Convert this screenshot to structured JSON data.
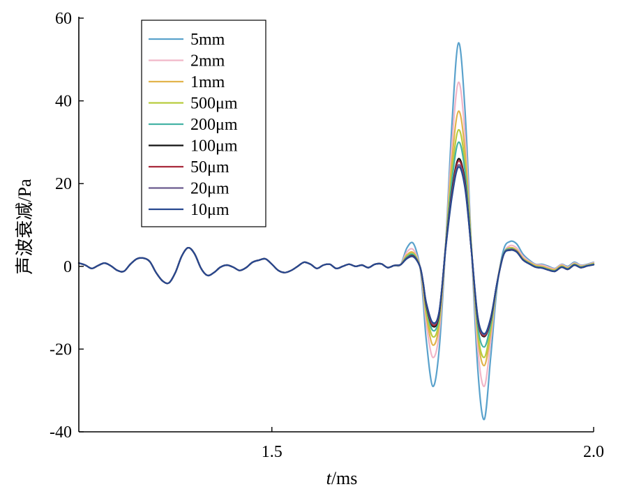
{
  "chart_data": {
    "type": "line",
    "title": "",
    "xlabel_italic": "t",
    "xlabel_unit": "/ms",
    "ylabel": "声波衰减/Pa",
    "xlim": [
      1.2,
      2.0
    ],
    "ylim": [
      -40,
      60
    ],
    "x_ticks": [
      {
        "value": 1.5,
        "label": "1.5"
      },
      {
        "value": 2.0,
        "label": "2.0"
      }
    ],
    "y_ticks": [
      {
        "value": 60,
        "label": "60"
      },
      {
        "value": 40,
        "label": "40"
      },
      {
        "value": 20,
        "label": "20"
      },
      {
        "value": 0,
        "label": "0"
      },
      {
        "value": -20,
        "label": "-20"
      },
      {
        "value": -40,
        "label": "-40"
      }
    ],
    "grid": false,
    "legend_position": "top-left",
    "prefix_x": [
      1.2,
      1.21,
      1.22,
      1.23,
      1.24,
      1.25,
      1.26,
      1.27,
      1.28,
      1.29,
      1.3,
      1.31,
      1.32,
      1.33,
      1.34,
      1.35,
      1.36,
      1.37,
      1.38,
      1.39,
      1.4,
      1.41,
      1.42,
      1.43,
      1.44,
      1.45,
      1.46,
      1.47,
      1.48,
      1.49,
      1.5,
      1.51,
      1.52,
      1.53,
      1.54,
      1.55,
      1.56,
      1.57,
      1.58,
      1.59,
      1.6,
      1.61,
      1.62,
      1.63,
      1.64,
      1.65,
      1.66,
      1.67,
      1.68,
      1.69,
      1.7
    ],
    "prefix_y": [
      0.8,
      0.3,
      -0.5,
      0.2,
      0.8,
      0.1,
      -1.0,
      -1.2,
      0.5,
      1.8,
      2.0,
      1.2,
      -1.5,
      -3.5,
      -4.0,
      -1.5,
      2.5,
      4.5,
      3.0,
      -0.5,
      -2.2,
      -1.5,
      -0.2,
      0.3,
      -0.2,
      -1.0,
      -0.3,
      1.0,
      1.5,
      1.8,
      0.5,
      -1.0,
      -1.5,
      -1.0,
      0.0,
      1.0,
      0.5,
      -0.5,
      0.3,
      0.5,
      -0.5,
      0.0,
      0.5,
      0.0,
      0.3,
      -0.3,
      0.5,
      0.6,
      -0.3,
      0.2,
      0.4
    ],
    "pulse_x": [
      1.7,
      1.71,
      1.72,
      1.73,
      1.735,
      1.74,
      1.75,
      1.76,
      1.77,
      1.78,
      1.79,
      1.8,
      1.81,
      1.82,
      1.83,
      1.84,
      1.85,
      1.86,
      1.87,
      1.88,
      1.89,
      1.9,
      1.91,
      1.92,
      1.93,
      1.94,
      1.95,
      1.96,
      1.97,
      1.98,
      1.99,
      2.0
    ],
    "series": [
      {
        "name": "5mm",
        "color": "#5aa2cc",
        "pulse_y": [
          1.0,
          4.5,
          5.5,
          0.0,
          -8.0,
          -18.0,
          -29.0,
          -20.0,
          5.0,
          35.0,
          54.0,
          38.0,
          5.0,
          -25.0,
          -37.0,
          -22.0,
          -5.0,
          4.0,
          6.0,
          5.5,
          3.0,
          1.5,
          0.5,
          0.5,
          0.0,
          -0.5,
          0.5,
          0.0,
          1.0,
          0.3,
          0.5,
          1.0
        ]
      },
      {
        "name": "2mm",
        "color": "#f1b6c8",
        "pulse_y": [
          0.8,
          3.5,
          4.0,
          0.0,
          -6.0,
          -14.0,
          -22.0,
          -16.0,
          5.0,
          30.0,
          44.5,
          32.0,
          5.0,
          -20.0,
          -29.0,
          -18.0,
          -4.0,
          3.0,
          5.0,
          4.5,
          2.5,
          1.2,
          0.4,
          0.3,
          -0.2,
          -0.6,
          0.4,
          -0.2,
          0.8,
          0.2,
          0.4,
          0.9
        ]
      },
      {
        "name": "1mm",
        "color": "#e2b44c",
        "pulse_y": [
          0.6,
          2.8,
          3.3,
          0.0,
          -5.0,
          -12.0,
          -19.0,
          -14.0,
          5.0,
          26.0,
          37.5,
          28.0,
          5.0,
          -17.0,
          -24.0,
          -16.0,
          -4.0,
          3.0,
          4.5,
          4.0,
          2.0,
          1.0,
          0.2,
          0.0,
          -0.5,
          -0.8,
          0.2,
          -0.4,
          0.6,
          0.0,
          0.3,
          0.7
        ]
      },
      {
        "name": "500μm",
        "color": "#b8cc3f",
        "pulse_y": [
          0.5,
          2.5,
          3.0,
          0.0,
          -4.5,
          -11.0,
          -17.0,
          -13.0,
          5.0,
          23.0,
          33.0,
          25.0,
          5.0,
          -16.0,
          -22.0,
          -15.0,
          -4.0,
          3.0,
          4.3,
          3.8,
          1.8,
          0.8,
          0.0,
          -0.2,
          -0.7,
          -1.0,
          0.0,
          -0.5,
          0.5,
          -0.1,
          0.2,
          0.6
        ]
      },
      {
        "name": "200μm",
        "color": "#45b3a5",
        "pulse_y": [
          0.4,
          2.3,
          2.8,
          0.0,
          -4.0,
          -10.0,
          -15.5,
          -12.0,
          5.0,
          21.0,
          30.0,
          23.0,
          4.5,
          -14.5,
          -19.5,
          -14.0,
          -4.0,
          3.0,
          4.2,
          3.7,
          1.7,
          0.7,
          -0.1,
          -0.3,
          -0.8,
          -1.1,
          -0.1,
          -0.6,
          0.4,
          -0.2,
          0.2,
          0.5
        ]
      },
      {
        "name": "100μm",
        "color": "#111111",
        "pulse_y": [
          0.3,
          2.0,
          2.5,
          0.0,
          -4.0,
          -9.5,
          -14.5,
          -11.5,
          4.5,
          18.5,
          26.0,
          20.5,
          4.0,
          -13.0,
          -17.0,
          -13.0,
          -4.0,
          2.8,
          4.0,
          3.6,
          1.6,
          0.6,
          -0.2,
          -0.4,
          -0.9,
          -1.2,
          -0.2,
          -0.7,
          0.3,
          -0.3,
          0.1,
          0.4
        ]
      },
      {
        "name": "50μm",
        "color": "#a8283a",
        "pulse_y": [
          0.3,
          2.0,
          2.4,
          0.0,
          -3.9,
          -9.3,
          -14.2,
          -11.2,
          4.5,
          18.0,
          25.5,
          20.0,
          4.0,
          -12.8,
          -16.8,
          -12.8,
          -4.0,
          2.8,
          4.0,
          3.6,
          1.6,
          0.6,
          -0.2,
          -0.4,
          -0.9,
          -1.2,
          -0.2,
          -0.7,
          0.3,
          -0.3,
          0.1,
          0.4
        ]
      },
      {
        "name": "20μm",
        "color": "#6a5a8e",
        "pulse_y": [
          0.3,
          1.9,
          2.3,
          0.0,
          -3.8,
          -9.0,
          -13.8,
          -11.0,
          4.3,
          17.5,
          24.5,
          19.5,
          4.0,
          -12.5,
          -16.5,
          -12.6,
          -4.0,
          2.8,
          3.9,
          3.5,
          1.6,
          0.6,
          -0.2,
          -0.4,
          -0.9,
          -1.2,
          -0.2,
          -0.7,
          0.3,
          -0.3,
          0.1,
          0.4
        ]
      },
      {
        "name": "10μm",
        "color": "#27488f",
        "pulse_y": [
          0.3,
          1.9,
          2.3,
          0.0,
          -3.8,
          -8.9,
          -13.6,
          -10.9,
          4.2,
          17.0,
          24.0,
          19.0,
          4.0,
          -12.3,
          -16.3,
          -12.5,
          -4.0,
          2.8,
          3.9,
          3.5,
          1.6,
          0.6,
          -0.2,
          -0.4,
          -0.9,
          -1.2,
          -0.2,
          -0.7,
          0.3,
          -0.3,
          0.1,
          0.4
        ]
      }
    ]
  }
}
